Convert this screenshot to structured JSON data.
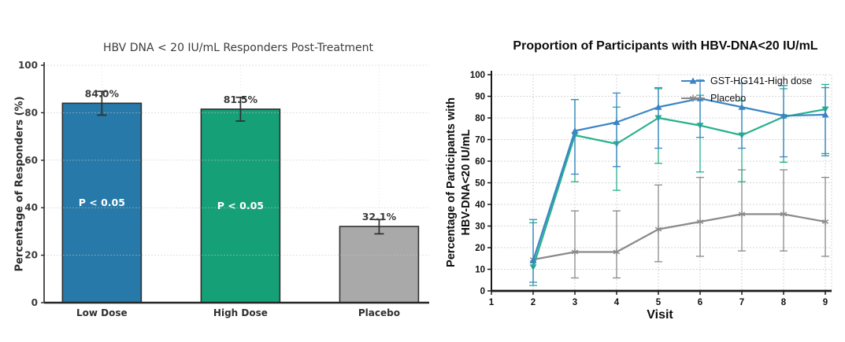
{
  "page": {
    "background": "#ffffff"
  },
  "chart_data": [
    {
      "type": "bar",
      "title": "HBV DNA < 20 IU/mL Responders Post-Treatment",
      "ylabel": "Percentage of Responders (%)",
      "xlabel": "",
      "ylim": [
        0,
        100
      ],
      "yticks": [
        0,
        20,
        40,
        60,
        80,
        100
      ],
      "grid": true,
      "categories": [
        "Low Dose",
        "High Dose",
        "Placebo"
      ],
      "values": [
        84.0,
        81.5,
        32.1
      ],
      "value_labels": [
        "84.0%",
        "81.5%",
        "32.1%"
      ],
      "error_low": [
        79,
        76.5,
        29
      ],
      "error_high": [
        89,
        86.5,
        35
      ],
      "annotations": [
        "P < 0.05",
        "P < 0.05",
        null
      ],
      "bar_colors": [
        "#2679a8",
        "#16a077",
        "#a9a9a9"
      ],
      "bar_edge_color": "#2f2f2f",
      "text_color": "#3a3a3a"
    },
    {
      "type": "line",
      "title": "Proportion of Participants with HBV-DNA<20 IU/mL",
      "ylabel_line1": "Percentage of Participants with",
      "ylabel_line2": "HBV-DNA<20 IU/mL",
      "xlabel": "Visit",
      "xlim": [
        1,
        9
      ],
      "xticks": [
        1,
        2,
        3,
        4,
        5,
        6,
        7,
        8,
        9
      ],
      "ylim": [
        0,
        100
      ],
      "yticks": [
        0,
        10,
        20,
        30,
        40,
        50,
        60,
        70,
        80,
        90,
        100
      ],
      "grid": true,
      "legend_position": "top-right",
      "series": [
        {
          "name": "GST-HG141-High dose",
          "in_legend": true,
          "color": "#3c85c4",
          "marker": "triangle-up",
          "x": [
            2,
            3,
            4,
            5,
            6,
            7,
            8,
            9
          ],
          "y": [
            14,
            74,
            78,
            85,
            89,
            85,
            81,
            81.5
          ],
          "err_low": [
            4,
            54,
            57.5,
            66,
            71,
            66,
            62,
            62.5
          ],
          "err_high": [
            33,
            88.5,
            91.5,
            94,
            97.5,
            96,
            95,
            94
          ]
        },
        {
          "name": "",
          "in_legend": false,
          "color": "#27b18c",
          "marker": "triangle-down",
          "x": [
            2,
            3,
            4,
            5,
            6,
            7,
            8,
            9
          ],
          "y": [
            11,
            72,
            68,
            80,
            76.5,
            72,
            80.5,
            84
          ],
          "err_low": [
            2.5,
            50.5,
            46.5,
            59,
            55,
            50.5,
            59.5,
            63.5
          ],
          "err_high": [
            31.5,
            88.5,
            85,
            93.5,
            90.5,
            88,
            93.5,
            95.5
          ]
        },
        {
          "name": "Placebo",
          "in_legend": true,
          "color": "#8a8a8a",
          "marker": "asterisk",
          "x": [
            2,
            3,
            4,
            5,
            6,
            7,
            8,
            9
          ],
          "y": [
            14.5,
            18,
            18,
            28.5,
            32,
            35.5,
            35.5,
            32
          ],
          "err_low": [
            null,
            6,
            6,
            13.5,
            16,
            18.5,
            18.5,
            16
          ],
          "err_high": [
            null,
            37,
            37,
            49,
            52.5,
            56,
            56,
            52.5
          ]
        }
      ]
    }
  ]
}
